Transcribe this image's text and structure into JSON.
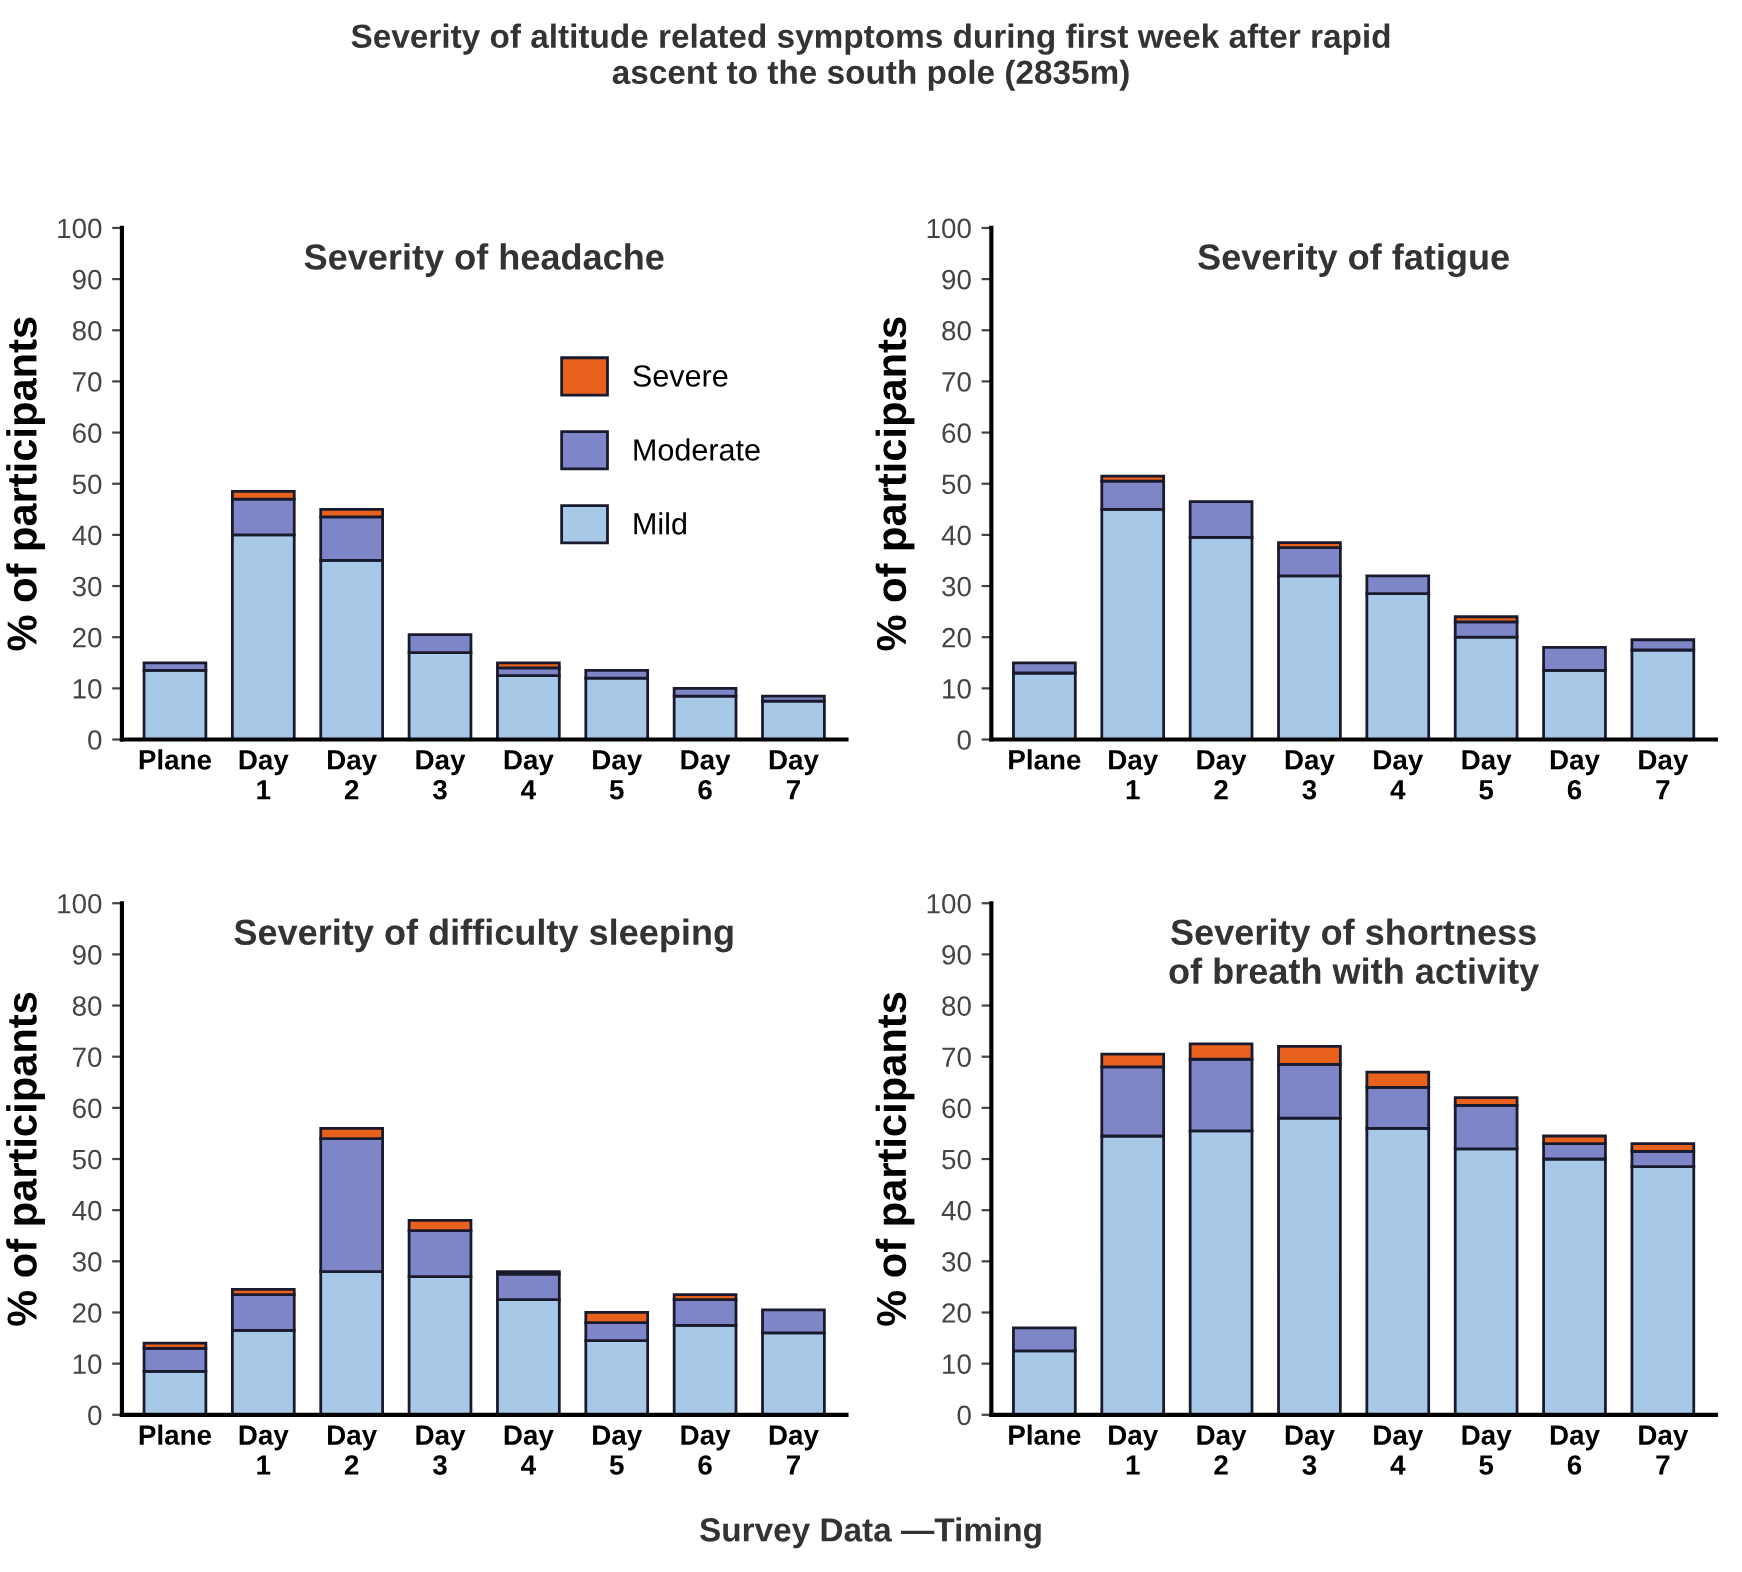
{
  "chart_data": [
    {
      "type": "bar",
      "stacked": true,
      "title": "Severity of headache",
      "ylabel": "% of participants",
      "annotations": [
        "Severity of altitude related symptoms during first week after rapid\nascent to the south pole (2835m)"
      ],
      "categories": [
        "Plane",
        "Day\n1",
        "Day\n2",
        "Day\n3",
        "Day\n4",
        "Day\n5",
        "Day\n6",
        "Day\n7"
      ],
      "ylim": [
        0,
        100
      ],
      "yticks": [
        0,
        10,
        20,
        30,
        40,
        50,
        60,
        70,
        80,
        90,
        100
      ],
      "grid": false,
      "legend": "top right",
      "series": [
        {
          "name": "Mild",
          "color": "#a8c8e8",
          "values": [
            13.5,
            40,
            35,
            17,
            12.5,
            12,
            8.5,
            7.5
          ]
        },
        {
          "name": "Moderate",
          "color": "#7f86c8",
          "values": [
            1.5,
            7,
            8.5,
            3.5,
            1.5,
            1.5,
            1.5,
            1
          ]
        },
        {
          "name": "Severe",
          "color": "#e8621e",
          "values": [
            null,
            1.5,
            1.5,
            null,
            1,
            null,
            null,
            null
          ]
        }
      ]
    },
    {
      "type": "bar",
      "stacked": true,
      "title": "Severity of fatigue",
      "ylabel": "% of participants",
      "categories": [
        "Plane",
        "Day\n1",
        "Day\n2",
        "Day\n3",
        "Day\n4",
        "Day\n5",
        "Day\n6",
        "Day\n7"
      ],
      "ylim": [
        0,
        100
      ],
      "yticks": [
        0,
        10,
        20,
        30,
        40,
        50,
        60,
        70,
        80,
        90,
        100
      ],
      "grid": false,
      "series": [
        {
          "color": "#a8c8e8",
          "values": [
            13,
            45,
            39.5,
            32,
            28.5,
            20,
            13.5,
            17.5
          ]
        },
        {
          "color": "#7f86c8",
          "values": [
            2,
            5.5,
            7,
            5.5,
            3.5,
            3,
            4.5,
            2
          ]
        },
        {
          "color": "#e8621e",
          "values": [
            null,
            1,
            null,
            1,
            null,
            1,
            null,
            null
          ]
        }
      ]
    },
    {
      "type": "bar",
      "stacked": true,
      "title": "Severity of difficulty sleeping",
      "ylabel": "% of participants",
      "categories": [
        "Plane",
        "Day\n1",
        "Day\n2",
        "Day\n3",
        "Day\n4",
        "Day\n5",
        "Day\n6",
        "Day\n7"
      ],
      "ylim": [
        0,
        100
      ],
      "yticks": [
        0,
        10,
        20,
        30,
        40,
        50,
        60,
        70,
        80,
        90,
        100
      ],
      "grid": false,
      "annotations": [
        "Survey Data —Timing"
      ],
      "series": [
        {
          "color": "#a8c8e8",
          "values": [
            8.5,
            16.5,
            28,
            27,
            22.5,
            14.5,
            17.5,
            16
          ]
        },
        {
          "color": "#7f86c8",
          "values": [
            4.5,
            7,
            26,
            9,
            5,
            3.5,
            5,
            4.5
          ]
        },
        {
          "color": "#e8621e",
          "values": [
            1,
            1,
            2,
            2,
            0.5,
            2,
            1,
            null
          ]
        }
      ]
    },
    {
      "type": "bar",
      "stacked": true,
      "title": "Severity of shortness\nof breath with activity",
      "ylabel": "% of participants",
      "categories": [
        "Plane",
        "Day\n1",
        "Day\n2",
        "Day\n3",
        "Day\n4",
        "Day\n5",
        "Day\n6",
        "Day\n7"
      ],
      "ylim": [
        0,
        100
      ],
      "yticks": [
        0,
        10,
        20,
        30,
        40,
        50,
        60,
        70,
        80,
        90,
        100
      ],
      "grid": false,
      "series": [
        {
          "color": "#a8c8e8",
          "values": [
            12.5,
            54.5,
            55.5,
            58,
            56,
            52,
            50,
            48.5
          ]
        },
        {
          "color": "#7f86c8",
          "values": [
            4.5,
            13.5,
            14,
            10.5,
            8,
            8.5,
            3,
            3
          ]
        },
        {
          "color": "#e8621e",
          "values": [
            null,
            2.5,
            3,
            3.5,
            3,
            1.5,
            1.5,
            1.5
          ]
        }
      ]
    }
  ]
}
